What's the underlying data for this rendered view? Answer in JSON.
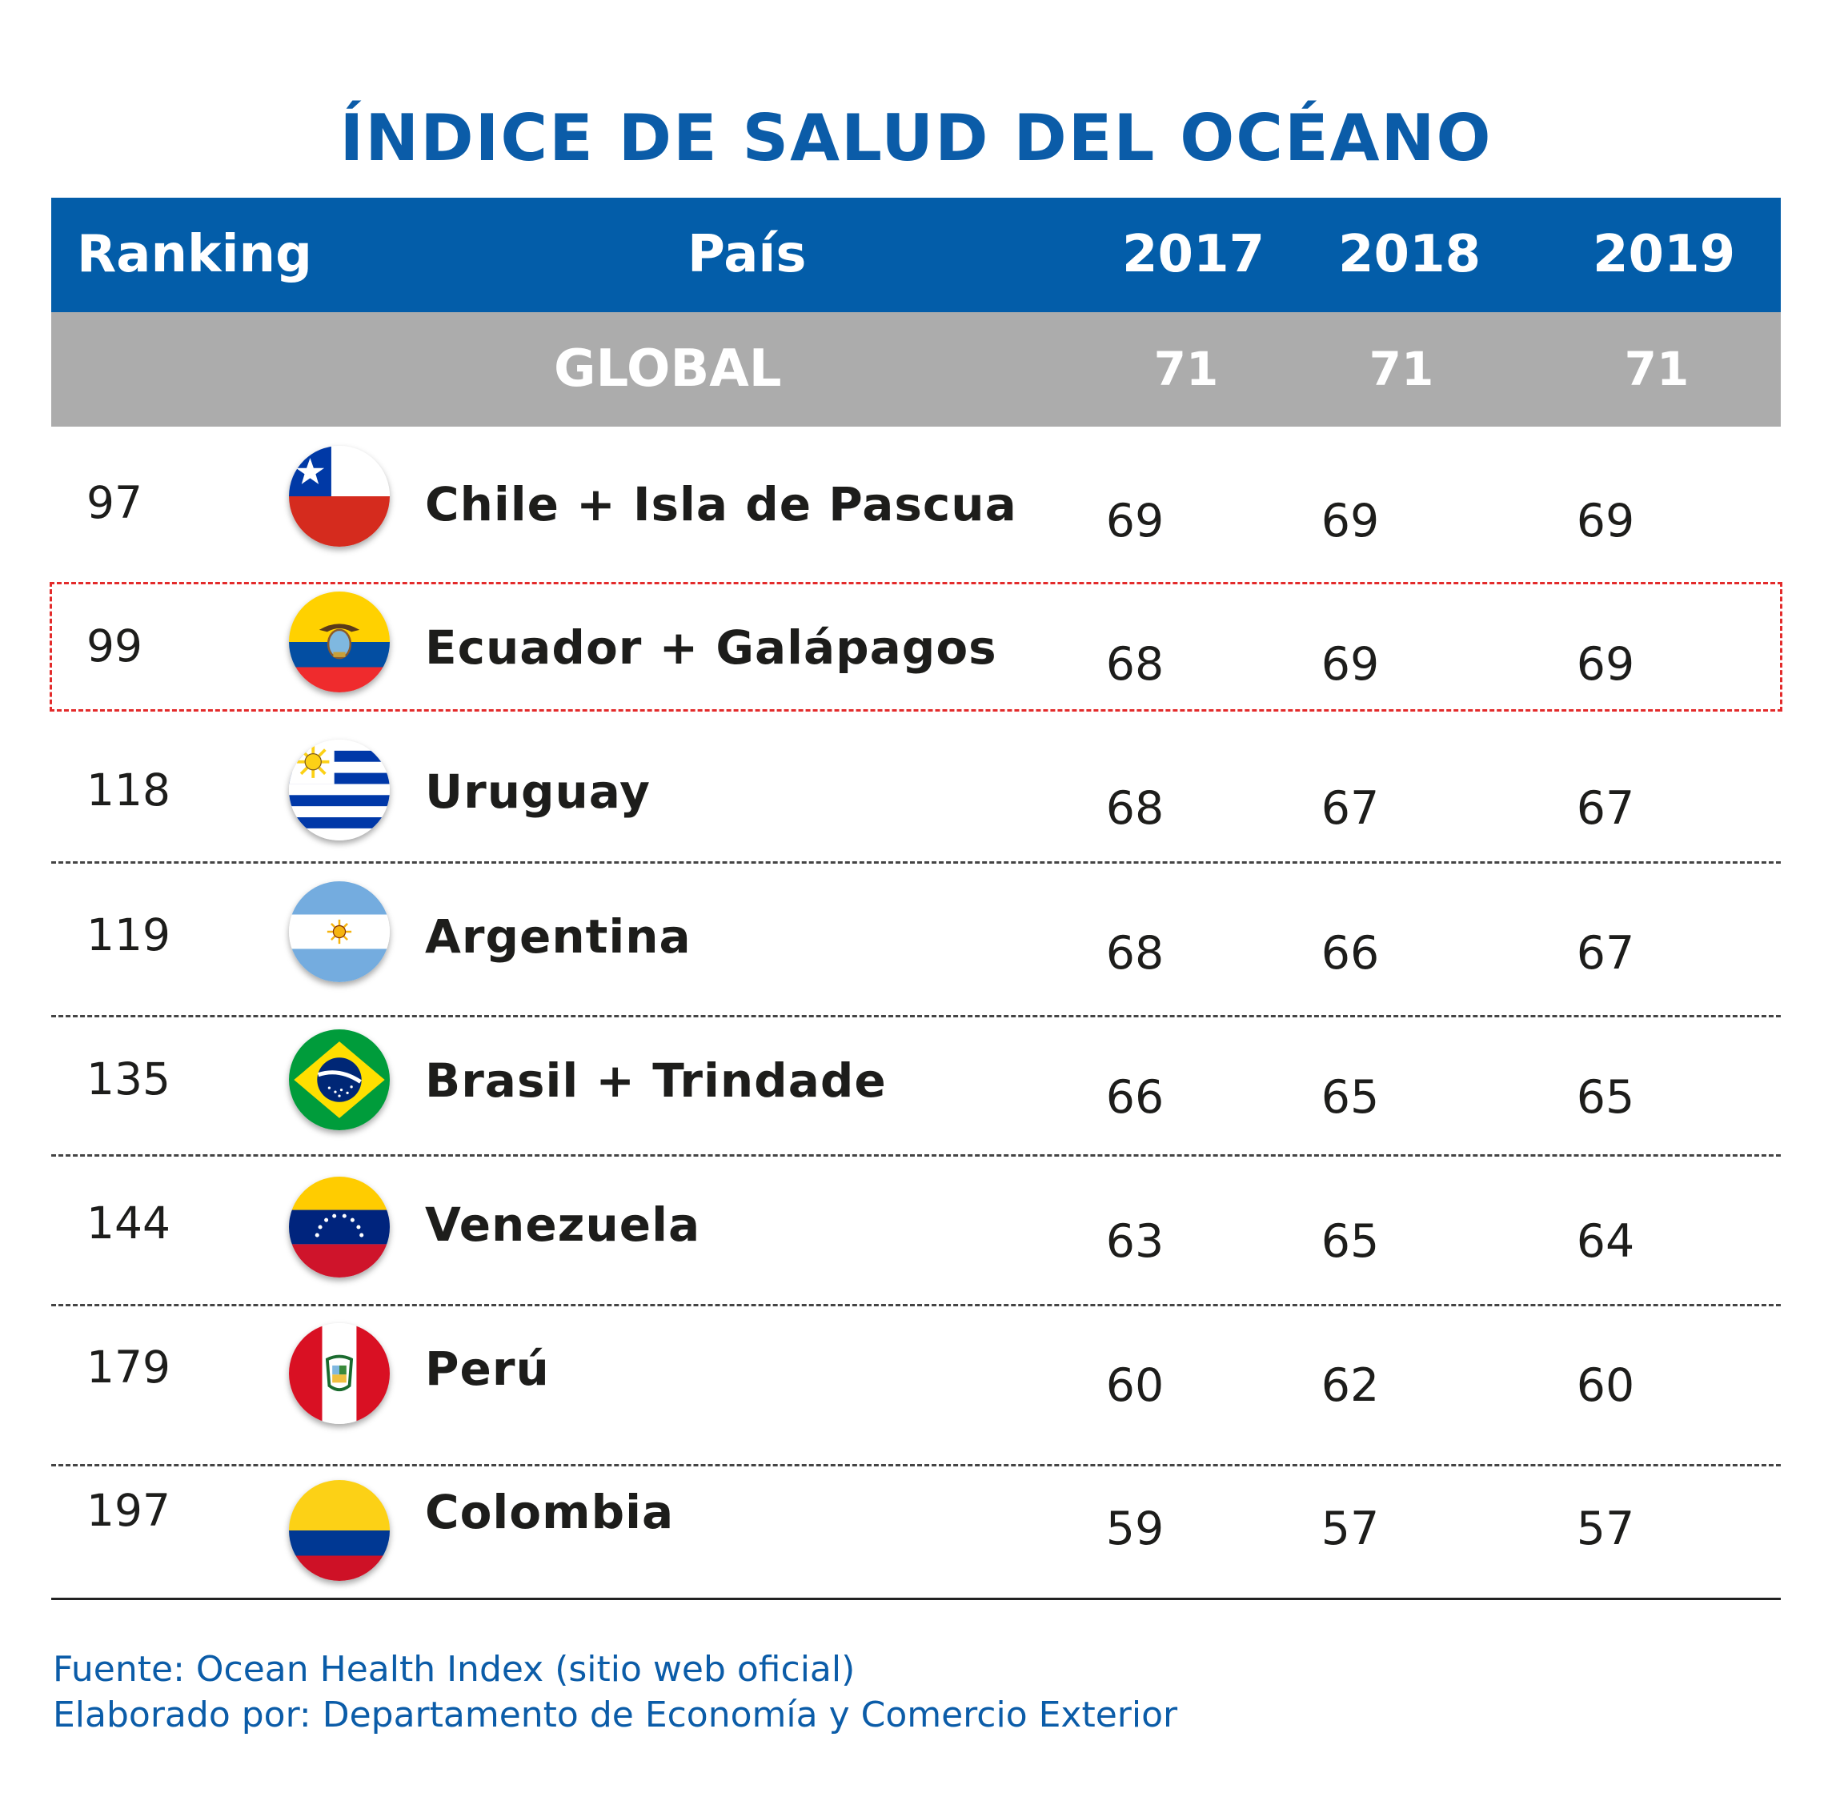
{
  "chart_data": {
    "type": "table",
    "title": "ÍNDICE DE SALUD DEL OCÉANO",
    "columns": [
      "Ranking",
      "País",
      "2017",
      "2018",
      "2019"
    ],
    "global": {
      "label": "GLOBAL",
      "values": [
        "71",
        "71",
        "71"
      ]
    },
    "rows": [
      {
        "rank": "97",
        "country": "Chile + Isla de Pascua",
        "flag": "chile-flag-icon",
        "values": [
          "69",
          "69",
          "69"
        ]
      },
      {
        "rank": "99",
        "country": "Ecuador + Galápagos",
        "flag": "ecuador-flag-icon",
        "values": [
          "68",
          "69",
          "69"
        ],
        "highlighted": true
      },
      {
        "rank": "118",
        "country": "Uruguay",
        "flag": "uruguay-flag-icon",
        "values": [
          "68",
          "67",
          "67"
        ]
      },
      {
        "rank": "119",
        "country": "Argentina",
        "flag": "argentina-flag-icon",
        "values": [
          "68",
          "66",
          "67"
        ]
      },
      {
        "rank": "135",
        "country": "Brasil + Trindade",
        "flag": "brazil-flag-icon",
        "values": [
          "66",
          "65",
          "65"
        ]
      },
      {
        "rank": "144",
        "country": "Venezuela",
        "flag": "venezuela-flag-icon",
        "values": [
          "63",
          "65",
          "64"
        ]
      },
      {
        "rank": "179",
        "country": "Perú",
        "flag": "peru-flag-icon",
        "values": [
          "60",
          "62",
          "60"
        ]
      },
      {
        "rank": "197",
        "country": "Colombia",
        "flag": "colombia-flag-icon",
        "values": [
          "59",
          "57",
          "57"
        ]
      }
    ]
  },
  "footer": {
    "source": "Fuente: Ocean Health Index (sitio web oficial)",
    "author": "Elaborado por: Departamento de Economía y Comercio Exterior"
  },
  "colors": {
    "header_bg": "#035da9",
    "global_bg": "#acacac",
    "title": "#0b5ca8",
    "highlight": "#e32b2b"
  }
}
